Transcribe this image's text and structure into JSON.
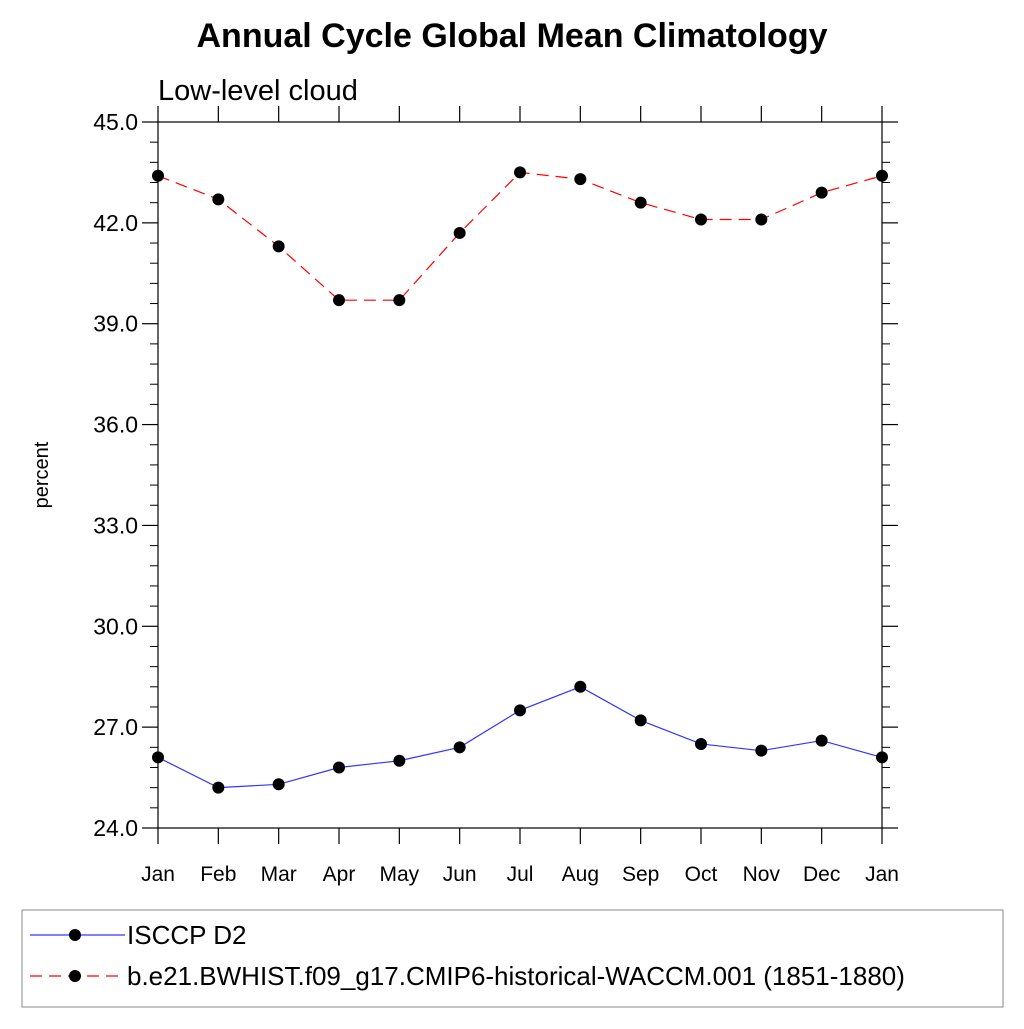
{
  "chart_data": {
    "type": "line",
    "title": "Annual Cycle Global Mean Climatology",
    "subtitle": "Low-level cloud",
    "xlabel": "",
    "ylabel": "percent",
    "categories": [
      "Jan",
      "Feb",
      "Mar",
      "Apr",
      "May",
      "Jun",
      "Jul",
      "Aug",
      "Sep",
      "Oct",
      "Nov",
      "Dec",
      "Jan"
    ],
    "ylim": [
      24.0,
      45.0
    ],
    "yticks": [
      "24.0",
      "27.0",
      "30.0",
      "33.0",
      "36.0",
      "39.0",
      "42.0",
      "45.0"
    ],
    "grid": false,
    "legend_position": "bottom",
    "series": [
      {
        "name": "ISCCP D2",
        "color": "#3333ff",
        "line_style": "solid",
        "marker": "filled-circle",
        "values": [
          26.1,
          25.2,
          25.3,
          25.8,
          26.0,
          26.4,
          27.5,
          28.2,
          27.2,
          26.5,
          26.3,
          26.6,
          26.1
        ]
      },
      {
        "name": "b.e21.BWHIST.f09_g17.CMIP6-historical-WACCM.001 (1851-1880)",
        "color": "#ff0000",
        "line_style": "dashed",
        "marker": "filled-circle",
        "values": [
          43.4,
          42.7,
          41.3,
          39.7,
          39.7,
          41.7,
          43.5,
          43.3,
          42.6,
          42.1,
          42.1,
          42.9,
          43.4
        ]
      }
    ]
  }
}
